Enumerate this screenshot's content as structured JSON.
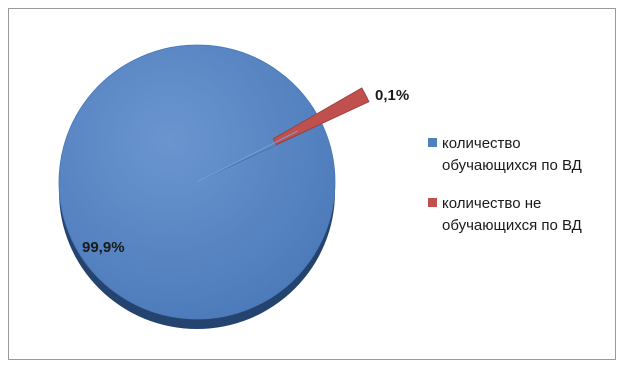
{
  "chart_data": {
    "type": "pie",
    "title": "",
    "legend_position": "right",
    "series": [
      {
        "name": "",
        "slices": [
          {
            "label": "количество обучающихся по ВД",
            "legend_lines": [
              "количество",
              "обучающихся по ВД"
            ],
            "value": 99.9,
            "display": "99,9%",
            "color": "#4f81bd"
          },
          {
            "label": "количество не обучающихся по ВД",
            "legend_lines": [
              "количество не",
              "обучающихся по ВД"
            ],
            "value": 0.1,
            "display": "0,1%",
            "color": "#c0504d",
            "exploded": true
          }
        ]
      }
    ]
  }
}
